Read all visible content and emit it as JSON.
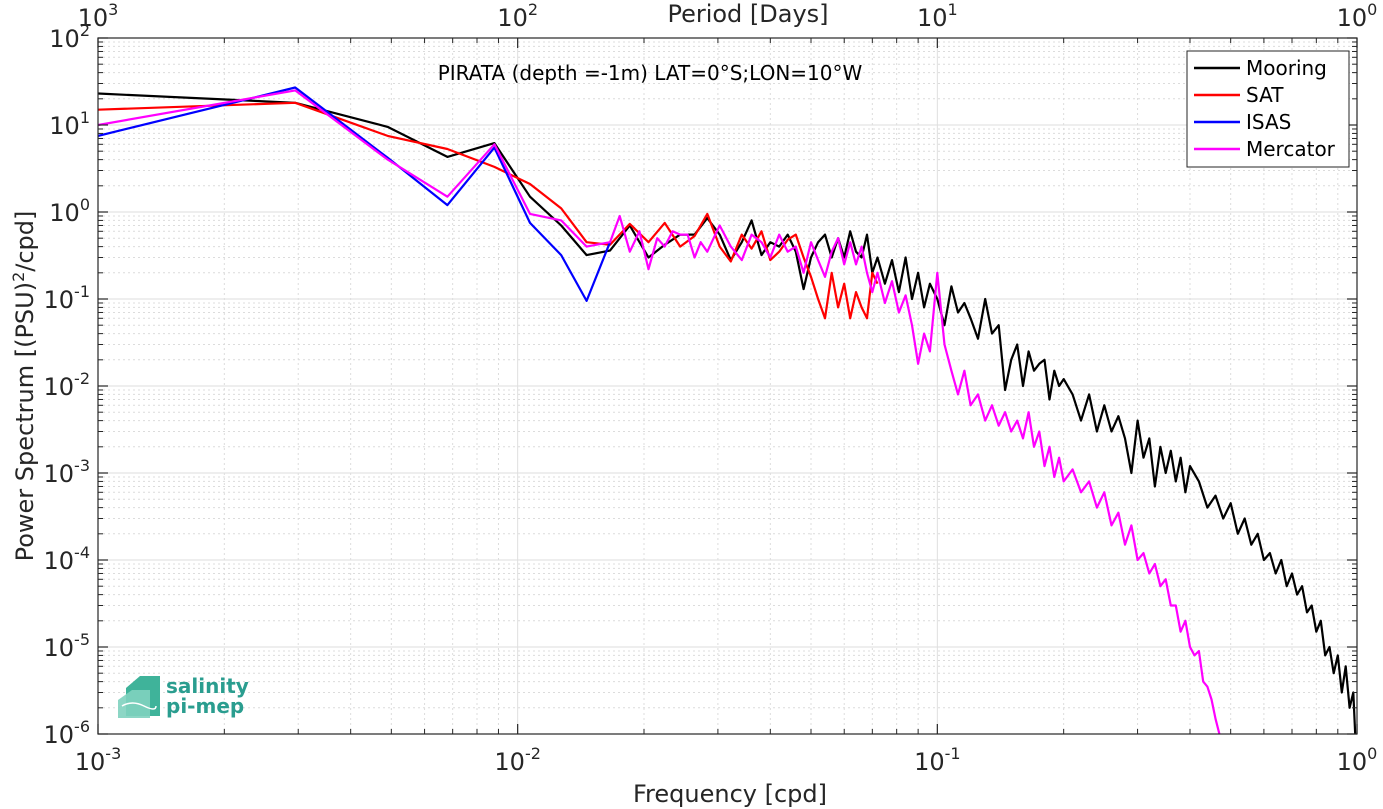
{
  "chart_data": {
    "type": "line",
    "title": "PIRATA (depth =-1m) LAT=0°S;LON=10°W",
    "xlabel": "Frequency [cpd]",
    "ylabel": "Power Spectrum [(PSU)^2/cpd]",
    "x2label": "Period [Days]",
    "xscale": "log",
    "yscale": "log",
    "xlim": [
      0.001,
      1
    ],
    "ylim": [
      1e-06,
      100
    ],
    "grid": true,
    "legend_position": "top-right",
    "x_ticks": [
      {
        "base": "10",
        "exp": "-3"
      },
      {
        "base": "10",
        "exp": "-2"
      },
      {
        "base": "10",
        "exp": "-1"
      },
      {
        "base": "10",
        "exp": "0"
      }
    ],
    "x2_ticks": [
      {
        "base": "10",
        "exp": "3"
      },
      {
        "base": "10",
        "exp": "2"
      },
      {
        "base": "10",
        "exp": "1"
      },
      {
        "base": "10",
        "exp": "0"
      }
    ],
    "y_ticks": [
      {
        "base": "10",
        "exp": "2"
      },
      {
        "base": "10",
        "exp": "1"
      },
      {
        "base": "10",
        "exp": "0"
      },
      {
        "base": "10",
        "exp": "-1"
      },
      {
        "base": "10",
        "exp": "-2"
      },
      {
        "base": "10",
        "exp": "-3"
      },
      {
        "base": "10",
        "exp": "-4"
      },
      {
        "base": "10",
        "exp": "-5"
      },
      {
        "base": "10",
        "exp": "-6"
      }
    ],
    "series": [
      {
        "name": "Mooring",
        "color": "#000000",
        "x": [
          0.001,
          0.00295,
          0.0049,
          0.0068,
          0.0088,
          0.0107,
          0.0127,
          0.0146,
          0.0166,
          0.0185,
          0.0205,
          0.0224,
          0.0244,
          0.0264,
          0.0283,
          0.0303,
          0.0322,
          0.0342,
          0.0361,
          0.0381,
          0.04,
          0.042,
          0.044,
          0.046,
          0.048,
          0.05,
          0.052,
          0.054,
          0.056,
          0.058,
          0.06,
          0.062,
          0.064,
          0.066,
          0.068,
          0.07,
          0.072,
          0.075,
          0.078,
          0.081,
          0.084,
          0.087,
          0.09,
          0.093,
          0.096,
          0.1,
          0.104,
          0.108,
          0.112,
          0.116,
          0.12,
          0.125,
          0.13,
          0.135,
          0.14,
          0.145,
          0.15,
          0.155,
          0.16,
          0.165,
          0.17,
          0.175,
          0.18,
          0.185,
          0.19,
          0.195,
          0.2,
          0.21,
          0.22,
          0.23,
          0.24,
          0.25,
          0.26,
          0.27,
          0.28,
          0.29,
          0.3,
          0.31,
          0.32,
          0.33,
          0.34,
          0.35,
          0.36,
          0.37,
          0.38,
          0.39,
          0.4,
          0.42,
          0.44,
          0.46,
          0.48,
          0.5,
          0.52,
          0.54,
          0.56,
          0.58,
          0.6,
          0.62,
          0.64,
          0.66,
          0.68,
          0.7,
          0.72,
          0.74,
          0.76,
          0.78,
          0.8,
          0.82,
          0.84,
          0.86,
          0.88,
          0.9,
          0.92,
          0.94,
          0.96,
          0.98,
          0.99
        ],
        "y": [
          23,
          18,
          9.5,
          4.3,
          6.2,
          1.5,
          0.7,
          0.32,
          0.36,
          0.7,
          0.3,
          0.42,
          0.55,
          0.55,
          0.85,
          0.55,
          0.28,
          0.45,
          0.8,
          0.32,
          0.45,
          0.4,
          0.55,
          0.35,
          0.13,
          0.3,
          0.45,
          0.55,
          0.3,
          0.5,
          0.3,
          0.6,
          0.35,
          0.3,
          0.55,
          0.2,
          0.3,
          0.15,
          0.28,
          0.12,
          0.3,
          0.1,
          0.2,
          0.08,
          0.15,
          0.1,
          0.05,
          0.14,
          0.07,
          0.09,
          0.06,
          0.035,
          0.1,
          0.04,
          0.05,
          0.009,
          0.02,
          0.03,
          0.01,
          0.025,
          0.015,
          0.018,
          0.02,
          0.007,
          0.015,
          0.01,
          0.012,
          0.008,
          0.004,
          0.008,
          0.003,
          0.006,
          0.003,
          0.0045,
          0.0025,
          0.001,
          0.004,
          0.0015,
          0.0025,
          0.0007,
          0.002,
          0.001,
          0.0018,
          0.0008,
          0.0015,
          0.0006,
          0.0012,
          0.0008,
          0.0004,
          0.00055,
          0.0003,
          0.00045,
          0.0002,
          0.0003,
          0.00015,
          0.0002,
          0.0001,
          0.00012,
          7e-05,
          0.0001,
          5e-05,
          7e-05,
          4e-05,
          5e-05,
          2.5e-05,
          3e-05,
          1.5e-05,
          2e-05,
          8e-06,
          1e-05,
          5e-06,
          8e-06,
          3e-06,
          6e-06,
          2e-06,
          3e-06,
          1e-06
        ]
      },
      {
        "name": "SAT",
        "color": "#ff0000",
        "x": [
          0.001,
          0.00295,
          0.0049,
          0.0068,
          0.0088,
          0.0107,
          0.0127,
          0.0146,
          0.0166,
          0.0185,
          0.0205,
          0.0224,
          0.0244,
          0.0264,
          0.0283,
          0.0303,
          0.0322,
          0.0342,
          0.0361,
          0.0381,
          0.04,
          0.042,
          0.044,
          0.046,
          0.048,
          0.05,
          0.052,
          0.054,
          0.056,
          0.058,
          0.06,
          0.062,
          0.064,
          0.066,
          0.068,
          0.07,
          0.072
        ],
        "y": [
          15,
          18,
          7.5,
          5.3,
          3.3,
          2.1,
          1.1,
          0.45,
          0.42,
          0.73,
          0.45,
          0.75,
          0.4,
          0.53,
          0.95,
          0.4,
          0.27,
          0.55,
          0.38,
          0.6,
          0.28,
          0.35,
          0.48,
          0.55,
          0.3,
          0.18,
          0.1,
          0.06,
          0.2,
          0.08,
          0.15,
          0.06,
          0.12,
          0.08,
          0.06,
          0.2,
          0.15
        ]
      },
      {
        "name": "ISAS",
        "color": "#0000ff",
        "x": [
          0.001,
          0.00295,
          0.0049,
          0.0068,
          0.0088,
          0.0107,
          0.0127,
          0.0146,
          0.0166
        ],
        "y": [
          7.5,
          27,
          4.2,
          1.2,
          5.5,
          0.75,
          0.32,
          0.095,
          0.45
        ]
      },
      {
        "name": "Mercator",
        "color": "#ff00ff",
        "x": [
          0.001,
          0.00295,
          0.0049,
          0.0068,
          0.0088,
          0.0107,
          0.0127,
          0.0146,
          0.0166,
          0.0175,
          0.0185,
          0.0195,
          0.0205,
          0.0215,
          0.0224,
          0.0234,
          0.0244,
          0.0254,
          0.0264,
          0.0273,
          0.0283,
          0.0293,
          0.0303,
          0.0322,
          0.0342,
          0.0361,
          0.0381,
          0.04,
          0.042,
          0.044,
          0.046,
          0.048,
          0.05,
          0.052,
          0.054,
          0.056,
          0.058,
          0.06,
          0.062,
          0.064,
          0.066,
          0.068,
          0.07,
          0.072,
          0.075,
          0.078,
          0.081,
          0.084,
          0.087,
          0.09,
          0.093,
          0.096,
          0.1,
          0.104,
          0.108,
          0.112,
          0.116,
          0.12,
          0.125,
          0.13,
          0.135,
          0.14,
          0.145,
          0.15,
          0.155,
          0.16,
          0.165,
          0.17,
          0.175,
          0.18,
          0.185,
          0.19,
          0.195,
          0.2,
          0.21,
          0.22,
          0.23,
          0.24,
          0.25,
          0.26,
          0.27,
          0.28,
          0.29,
          0.3,
          0.31,
          0.32,
          0.33,
          0.34,
          0.35,
          0.36,
          0.37,
          0.38,
          0.39,
          0.4,
          0.41,
          0.42,
          0.43,
          0.44,
          0.45,
          0.46,
          0.47,
          0.48
        ],
        "y": [
          10,
          25,
          4,
          1.5,
          6,
          0.95,
          0.8,
          0.4,
          0.45,
          0.9,
          0.35,
          0.6,
          0.22,
          0.5,
          0.4,
          0.6,
          0.55,
          0.55,
          0.3,
          0.45,
          0.35,
          0.5,
          0.7,
          0.4,
          0.28,
          0.55,
          0.45,
          0.3,
          0.55,
          0.35,
          0.4,
          0.2,
          0.45,
          0.28,
          0.18,
          0.35,
          0.5,
          0.25,
          0.45,
          0.25,
          0.4,
          0.2,
          0.12,
          0.2,
          0.09,
          0.16,
          0.07,
          0.11,
          0.05,
          0.018,
          0.04,
          0.025,
          0.2,
          0.03,
          0.015,
          0.008,
          0.015,
          0.006,
          0.008,
          0.004,
          0.006,
          0.0035,
          0.005,
          0.003,
          0.004,
          0.0025,
          0.005,
          0.002,
          0.003,
          0.0012,
          0.002,
          0.0009,
          0.0015,
          0.0008,
          0.0011,
          0.0006,
          0.0008,
          0.0004,
          0.0006,
          0.00025,
          0.00035,
          0.00015,
          0.00025,
          0.0001,
          0.00012,
          7e-05,
          9e-05,
          5e-05,
          6e-05,
          3e-05,
          3e-05,
          1.5e-05,
          2e-05,
          1e-05,
          8e-06,
          9e-06,
          4e-06,
          3.5e-06,
          2.5e-06,
          1.5e-06,
          1e-06,
          8e-07
        ]
      }
    ]
  },
  "logo": {
    "line1": "salinity",
    "line2": "pi-mep"
  }
}
